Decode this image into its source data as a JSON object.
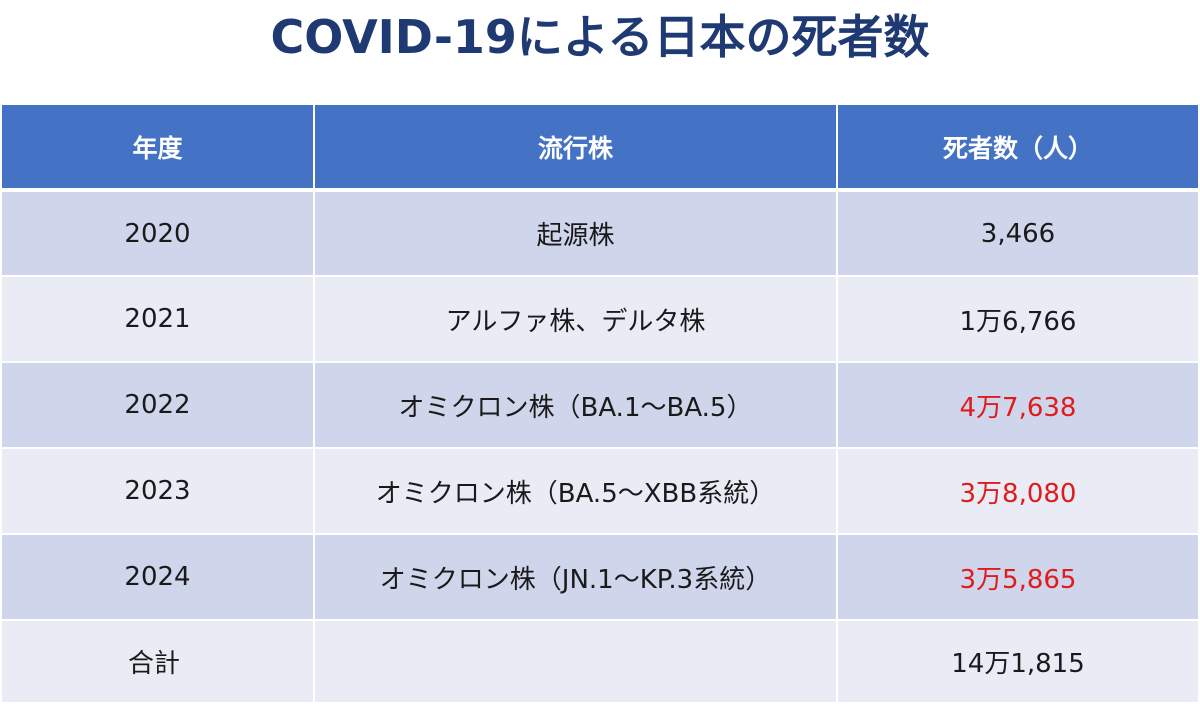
{
  "title": "COVID-19による日本の死者数",
  "table": {
    "headers": {
      "year": "年度",
      "strain": "流行株",
      "deaths": "死者数（人）"
    },
    "rows": [
      {
        "year": "2020",
        "strain": "起源株",
        "deaths": "3,466",
        "highlight": false
      },
      {
        "year": "2021",
        "strain": "アルファ株、デルタ株",
        "deaths": "1万6,766",
        "highlight": false
      },
      {
        "year": "2022",
        "strain": "オミクロン株（BA.1～BA.5）",
        "deaths": "4万7,638",
        "highlight": true
      },
      {
        "year": "2023",
        "strain": "オミクロン株（BA.5～XBB系統）",
        "deaths": "3万8,080",
        "highlight": true
      },
      {
        "year": "2024",
        "strain": "オミクロン株（JN.1～KP.3系統）",
        "deaths": "3万5,865",
        "highlight": true
      }
    ],
    "total": {
      "label": "合計",
      "strain": "",
      "deaths": "14万1,815"
    }
  },
  "colors": {
    "title": "#1f3a73",
    "header_bg": "#4472c4",
    "row_dark": "#cfd5ea",
    "row_light": "#e9ebf5",
    "highlight_text": "#e01b1b"
  }
}
